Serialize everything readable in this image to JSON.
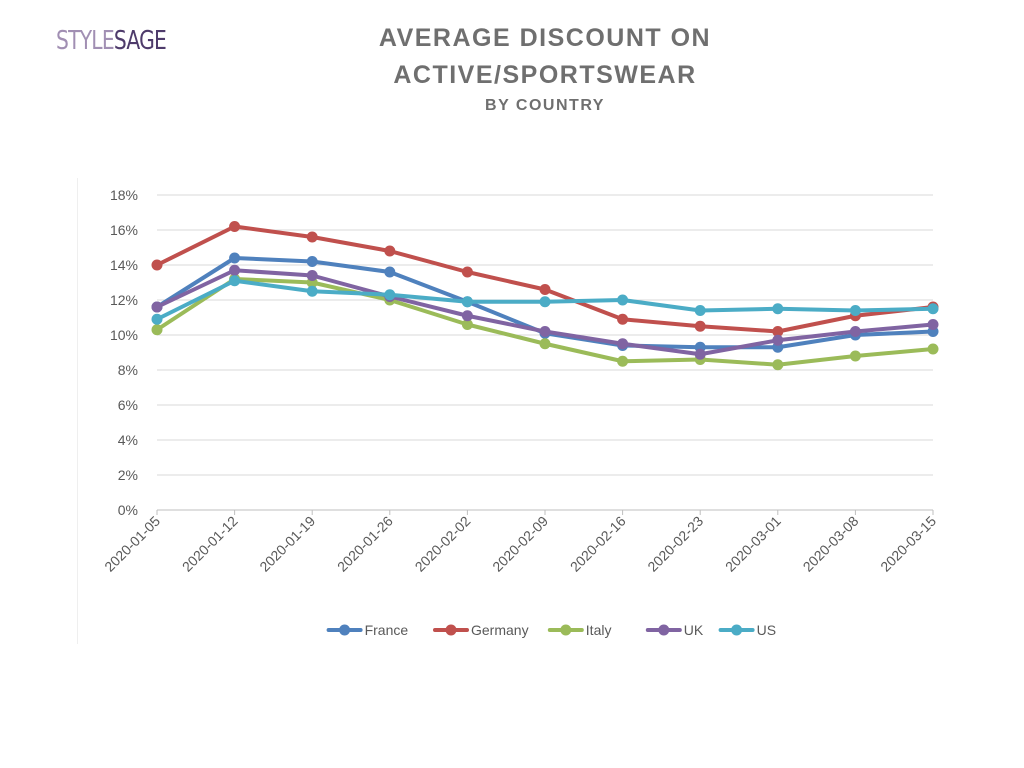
{
  "logo": {
    "part1": "STYLE",
    "part2": "SAGE"
  },
  "chart_data": {
    "type": "line",
    "title_lines": [
      "AVERAGE DISCOUNT ON",
      "ACTIVE/SPORTSWEAR"
    ],
    "subtitle": "BY COUNTRY",
    "xlabel": "",
    "ylabel": "",
    "x": [
      "2020-01-05",
      "2020-01-12",
      "2020-01-19",
      "2020-01-26",
      "2020-02-02",
      "2020-02-09",
      "2020-02-16",
      "2020-02-23",
      "2020-03-01",
      "2020-03-08",
      "2020-03-15"
    ],
    "yticks": [
      "0%",
      "2%",
      "4%",
      "6%",
      "8%",
      "10%",
      "12%",
      "14%",
      "16%",
      "18%"
    ],
    "ylim": [
      0,
      18
    ],
    "grid": true,
    "legend_position": "bottom",
    "series": [
      {
        "name": "France",
        "color": "#4f81bd",
        "values": [
          11.6,
          14.4,
          14.2,
          13.6,
          11.9,
          10.1,
          9.4,
          9.3,
          9.3,
          10.0,
          10.2
        ]
      },
      {
        "name": "Germany",
        "color": "#c0504d",
        "values": [
          14.0,
          16.2,
          15.6,
          14.8,
          13.6,
          12.6,
          10.9,
          10.5,
          10.2,
          11.1,
          11.6
        ]
      },
      {
        "name": "Italy",
        "color": "#9bbb59",
        "values": [
          10.3,
          13.2,
          13.0,
          12.0,
          10.6,
          9.5,
          8.5,
          8.6,
          8.3,
          8.8,
          9.2
        ]
      },
      {
        "name": "UK",
        "color": "#8064a2",
        "values": [
          11.6,
          13.7,
          13.4,
          12.2,
          11.1,
          10.2,
          9.5,
          8.9,
          9.7,
          10.2,
          10.6
        ]
      },
      {
        "name": "US",
        "color": "#4bacc6",
        "values": [
          10.9,
          13.1,
          12.5,
          12.3,
          11.9,
          11.9,
          12.0,
          11.4,
          11.5,
          11.4,
          11.5
        ]
      }
    ]
  }
}
